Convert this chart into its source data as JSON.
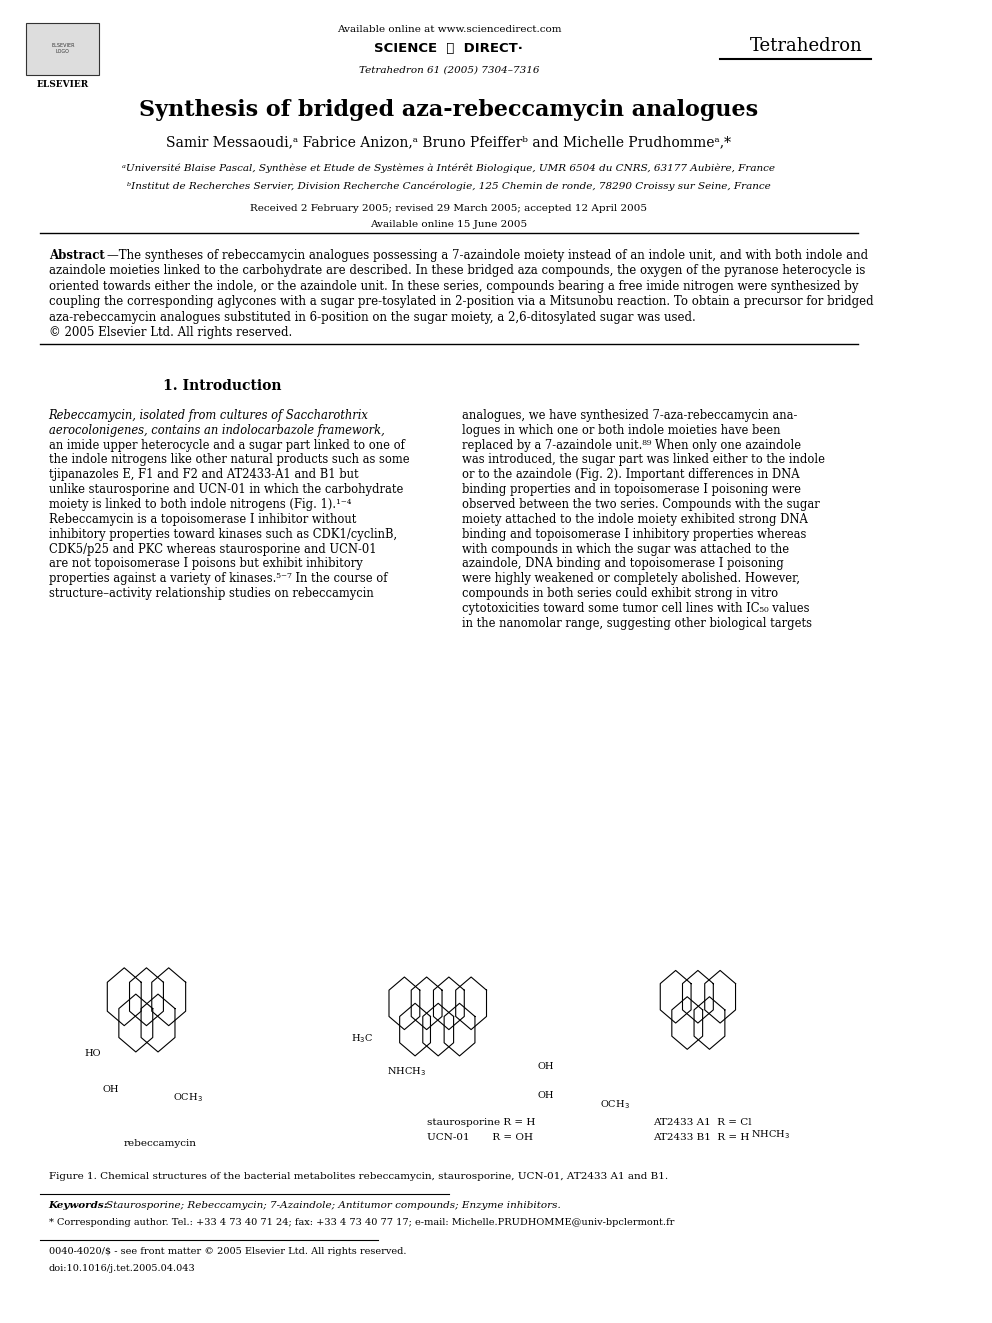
{
  "background_color": "#ffffff",
  "page_width": 9.92,
  "page_height": 13.23,
  "header": {
    "available_online": "Available online at www.sciencedirect.com",
    "journal_name_header": "Tetrahedron",
    "journal_citation": "Tetrahedron 61 (2005) 7304–7316",
    "elsevier_text": "ELSEVIER",
    "sciencedirect_text": "SCIENCE  DIRECT"
  },
  "title": "Synthesis of bridged aza-rebeccamycin analogues",
  "authors": "Samir Messaoudi,ᵃ Fabrice Anizon,ᵃ Bruno Pfeifferᵇ and Michelle Prudhommeᵃ,*",
  "affiliation_a": "ᵃUniversité Blaise Pascal, Synthèse et Etude de Systèmes à Intérêt Biologique, UMR 6504 du CNRS, 63177 Aubière, France",
  "affiliation_b": "ᵇInstitut de Recherches Servier, Division Recherche Cancérologie, 125 Chemin de ronde, 78290 Croissy sur Seine, France",
  "received": "Received 2 February 2005; revised 29 March 2005; accepted 12 April 2005",
  "available_online_article": "Available online 15 June 2005",
  "abstract_label": "Abstract",
  "abstract_lines": [
    "Abstract—The syntheses of rebeccamycin analogues possessing a 7-azaindole moiety instead of an indole unit, and with both indole and",
    "azaindole moieties linked to the carbohydrate are described. In these bridged aza compounds, the oxygen of the pyranose heterocycle is",
    "oriented towards either the indole, or the azaindole unit. In these series, compounds bearing a free imide nitrogen were synthesized by",
    "coupling the corresponding aglycones with a sugar pre-tosylated in 2-position via a Mitsunobu reaction. To obtain a precursor for bridged",
    "aza-rebeccamycin analogues substituted in 6-position on the sugar moiety, a 2,6-ditosylated sugar was used.",
    "© 2005 Elsevier Ltd. All rights reserved."
  ],
  "section1_title": "1. Introduction",
  "col1_lines": [
    "Rebeccamycin, isolated from cultures of Saccharothrix",
    "aerocolonigenes, contains an indolocarbazole framework,",
    "an imide upper heterocycle and a sugar part linked to one of",
    "the indole nitrogens like other natural products such as some",
    "tjipanazoles E, F1 and F2 and AT2433-A1 and B1 but",
    "unlike staurosporine and UCN-01 in which the carbohydrate",
    "moiety is linked to both indole nitrogens (Fig. 1).¹⁻⁴",
    "Rebeccamycin is a topoisomerase I inhibitor without",
    "inhibitory properties toward kinases such as CDK1/cyclinB,",
    "CDK5/p25 and PKC whereas staurosporine and UCN-01",
    "are not topoisomerase I poisons but exhibit inhibitory",
    "properties against a variety of kinases.⁵⁻⁷ In the course of",
    "structure–activity relationship studies on rebeccamycin"
  ],
  "col2_lines": [
    "analogues, we have synthesized 7-aza-rebeccamycin ana-",
    "logues in which one or both indole moieties have been",
    "replaced by a 7-azaindole unit.⁸⁹ When only one azaindole",
    "was introduced, the sugar part was linked either to the indole",
    "or to the azaindole (Fig. 2). Important differences in DNA",
    "binding properties and in topoisomerase I poisoning were",
    "observed between the two series. Compounds with the sugar",
    "moiety attached to the indole moiety exhibited strong DNA",
    "binding and topoisomerase I inhibitory properties whereas",
    "with compounds in which the sugar was attached to the",
    "azaindole, DNA binding and topoisomerase I poisoning",
    "were highly weakened or completely abolished. However,",
    "compounds in both series could exhibit strong in vitro",
    "cytotoxicities toward some tumor cell lines with IC₅₀ values",
    "in the nanomolar range, suggesting other biological targets"
  ],
  "figure_caption": "Figure 1. Chemical structures of the bacterial metabolites rebeccamycin, staurosporine, UCN-01, AT2433 A1 and B1.",
  "keywords_label": "Keywords",
  "keywords_text": "Staurosporine; Rebeccamycin; 7-Azaindole; Antitumor compounds; Enzyme inhibitors.",
  "corresponding_author": "* Corresponding author. Tel.: +33 4 73 40 71 24; fax: +33 4 73 40 77 17; e-mail: Michelle.PRUDHOMME@univ-bpclermont.fr",
  "footer_left": "0040-4020/$ - see front matter © 2005 Elsevier Ltd. All rights reserved.",
  "footer_doi": "doi:10.1016/j.tet.2005.04.043"
}
